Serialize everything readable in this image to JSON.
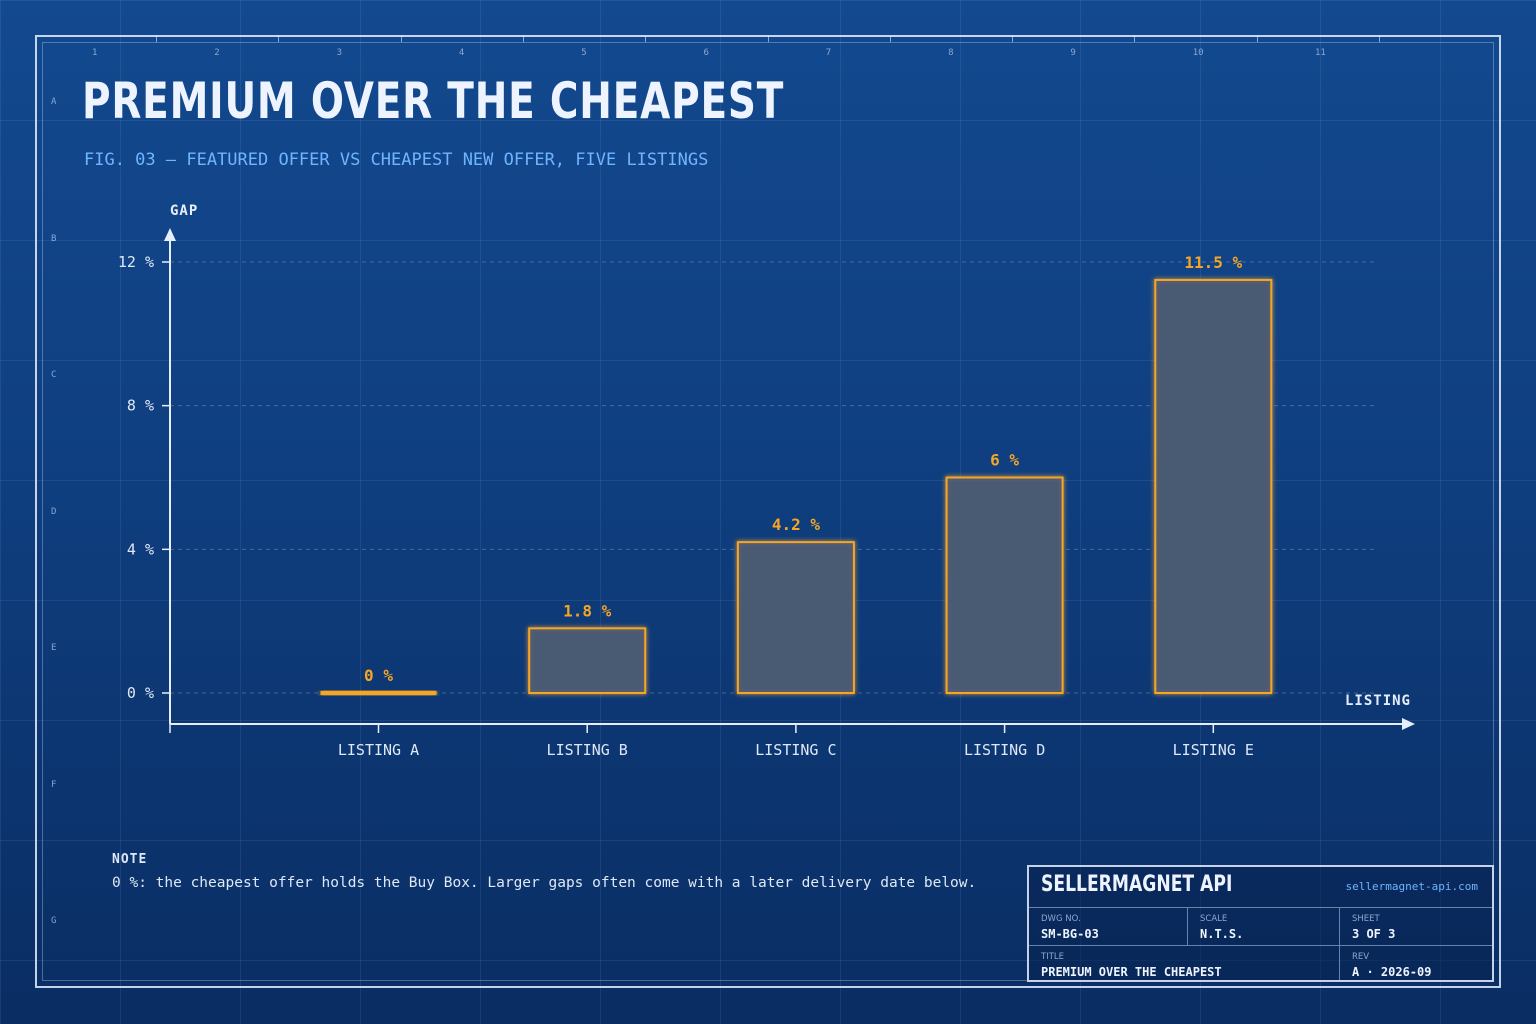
{
  "title": "PREMIUM OVER THE CHEAPEST",
  "subtitle": "FIG. 03  —  FEATURED OFFER VS CHEAPEST NEW OFFER, FIVE LISTINGS",
  "grid_columns": [
    "1",
    "2",
    "3",
    "4",
    "5",
    "6",
    "7",
    "8",
    "9",
    "10",
    "11"
  ],
  "grid_rows": [
    "A",
    "B",
    "C",
    "D",
    "E",
    "F",
    "G"
  ],
  "chart_data": {
    "type": "bar",
    "title": "PREMIUM OVER THE CHEAPEST",
    "ylabel": "GAP",
    "xlabel": "LISTING",
    "categories": [
      "LISTING A",
      "LISTING B",
      "LISTING C",
      "LISTING D",
      "LISTING E"
    ],
    "values": [
      0,
      1.8,
      4.2,
      6,
      11.5
    ],
    "value_labels": [
      "0 %",
      "1.8 %",
      "4.2 %",
      "6 %",
      "11.5 %"
    ],
    "ylim": [
      0,
      12
    ],
    "yticks": [
      0,
      4,
      8,
      12
    ],
    "ytick_labels": [
      "0 %",
      "4 %",
      "8 %",
      "12 %"
    ],
    "grid": true,
    "colors": {
      "bar_stroke": "#f5a623",
      "bar_fill": "#4a5a72",
      "axis": "#e6eefc"
    }
  },
  "note": {
    "heading": "NOTE",
    "text": "0 %: the cheapest offer holds the Buy Box. Larger gaps often come with a later delivery date below."
  },
  "title_block": {
    "brand": "SELLERMAGNET API",
    "url": "sellermagnet-api.com",
    "dwg_label": "DWG NO.",
    "dwg_value": "SM-BG-03",
    "scale_label": "SCALE",
    "scale_value": "N.T.S.",
    "sheet_label": "SHEET",
    "sheet_value": "3 OF 3",
    "title_label": "TITLE",
    "title_value": "PREMIUM OVER THE CHEAPEST",
    "rev_label": "REV",
    "rev_value": "A · 2026-09"
  }
}
